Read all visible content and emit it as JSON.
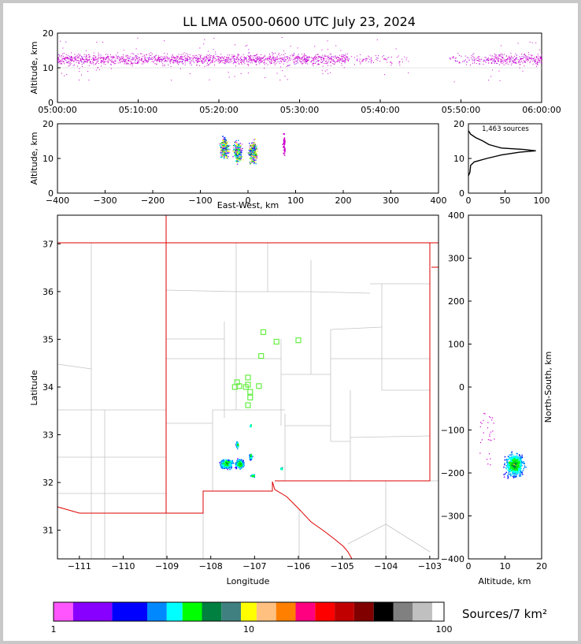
{
  "title": "LL LMA 0500-0600 UTC July 23, 2024",
  "colorbar": {
    "label": "Sources/7 km²",
    "ticks": [
      "1",
      "10",
      "100"
    ],
    "colors": [
      "#ff55ff",
      "#8800ff",
      "#0000ff",
      "#0088ff",
      "#00ffff",
      "#00ff00",
      "#008040",
      "#408080",
      "#ffff00",
      "#ffc080",
      "#ff8000",
      "#ff0080",
      "#ff0000",
      "#c00000",
      "#800000",
      "#000000",
      "#808080",
      "#c0c0c0",
      "#ffffff"
    ]
  },
  "chart_data": [
    {
      "id": "time-altitude",
      "type": "scatter",
      "ylabel": "Altitude, km",
      "xlabel": "",
      "x_ticks": [
        "05:00:00",
        "05:10:00",
        "05:20:00",
        "05:30:00",
        "05:40:00",
        "05:50:00",
        "06:00:00"
      ],
      "y_ticks": [
        "0",
        "10",
        "20"
      ],
      "ylim": [
        0,
        20
      ],
      "point_color": "#cc00cc",
      "activity_windows_min": [
        [
          0,
          43.5
        ],
        [
          48.5,
          60
        ]
      ],
      "altitude_core_km": [
        9,
        17
      ]
    },
    {
      "id": "eastwest-altitude",
      "type": "scatter",
      "xlabel": "East-West, km",
      "ylabel": "Altitude, km",
      "xlim": [
        -400,
        400
      ],
      "ylim": [
        0,
        20
      ],
      "x_ticks": [
        "−400",
        "−300",
        "−200",
        "−100",
        "0",
        "100",
        "200",
        "300",
        "400"
      ],
      "y_ticks": [
        "0",
        "10",
        "20"
      ],
      "clusters_km": [
        [
          -50,
          13
        ],
        [
          -22,
          12
        ],
        [
          10,
          12
        ],
        [
          75,
          14
        ]
      ]
    },
    {
      "id": "altitude-histogram",
      "type": "line",
      "annotation": "1,463 sources",
      "xlim": [
        0,
        100
      ],
      "ylim": [
        0,
        20
      ],
      "x_ticks": [
        "0",
        "50",
        "100"
      ],
      "y_ticks": [
        "0",
        "10",
        "20"
      ],
      "profile": [
        [
          0,
          5
        ],
        [
          2,
          6
        ],
        [
          3,
          8
        ],
        [
          8,
          9
        ],
        [
          25,
          10
        ],
        [
          45,
          11
        ],
        [
          70,
          11.8
        ],
        [
          92,
          12.2
        ],
        [
          75,
          12.6
        ],
        [
          45,
          13
        ],
        [
          28,
          14
        ],
        [
          20,
          15
        ],
        [
          10,
          16
        ],
        [
          3,
          17
        ],
        [
          0,
          18
        ]
      ]
    },
    {
      "id": "plan-view",
      "type": "scatter",
      "xlabel": "Longitude",
      "ylabel": "Latitude",
      "xlim": [
        -111.5,
        -102.8
      ],
      "ylim": [
        30.4,
        37.6
      ],
      "x_ticks": [
        "−111",
        "−110",
        "−109",
        "−108",
        "−107",
        "−106",
        "−105",
        "−104",
        "−103"
      ],
      "y_ticks": [
        "31",
        "32",
        "33",
        "34",
        "35",
        "36",
        "37"
      ],
      "stations": [
        [
          -106.8,
          35.15
        ],
        [
          -106.5,
          34.95
        ],
        [
          -106.0,
          34.98
        ],
        [
          -106.85,
          34.65
        ],
        [
          -107.4,
          34.1
        ],
        [
          -107.15,
          34.2
        ],
        [
          -107.35,
          34.02
        ],
        [
          -107.15,
          34.05
        ],
        [
          -107.1,
          33.9
        ],
        [
          -106.9,
          34.02
        ],
        [
          -107.1,
          33.78
        ],
        [
          -107.15,
          33.62
        ],
        [
          -107.2,
          34.0
        ],
        [
          -107.45,
          34.0
        ]
      ]
    },
    {
      "id": "altitude-northsouth",
      "type": "scatter",
      "xlabel": "Altitude, km",
      "ylabel": "North-South, km",
      "xlim": [
        0,
        20
      ],
      "ylim": [
        -400,
        400
      ],
      "x_ticks": [
        "0",
        "10",
        "20"
      ],
      "y_ticks": [
        "−400",
        "−300",
        "−200",
        "−100",
        "0",
        "100",
        "200",
        "300",
        "400"
      ]
    }
  ]
}
